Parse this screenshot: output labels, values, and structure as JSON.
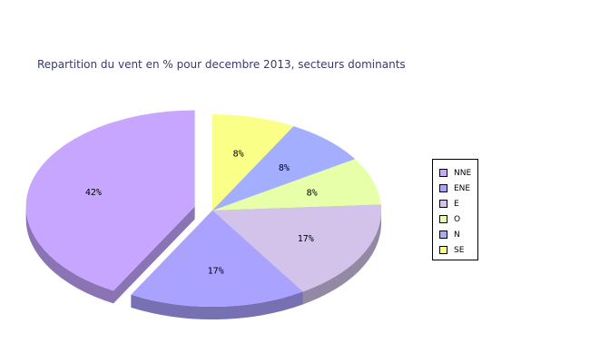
{
  "chart_data": {
    "type": "pie",
    "title": "Repartition du vent en % pour decembre 2013, secteurs dominants",
    "categories": [
      "NNE",
      "ENE",
      "E",
      "O",
      "N",
      "SE"
    ],
    "values": [
      42,
      17,
      17,
      8,
      8,
      8
    ],
    "labels": [
      "42%",
      "17%",
      "17%",
      "8%",
      "8%",
      "8%"
    ],
    "legend_position": "right",
    "colors": [
      "#c6a6ff",
      "#aaa2ff",
      "#d3c3eb",
      "#e8ffaa",
      "#a4aeff",
      "#faff88"
    ],
    "exploded": "NNE",
    "style": "3d"
  }
}
